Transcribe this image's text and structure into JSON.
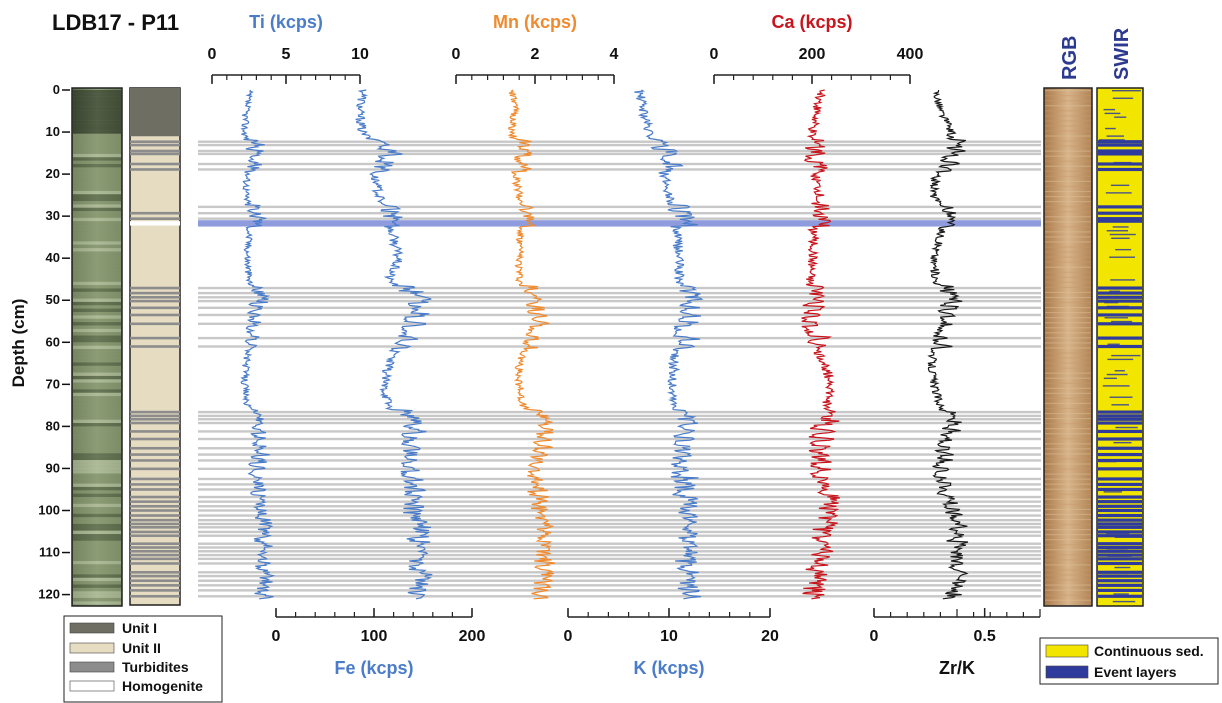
{
  "core_label": "LDB17 - P11",
  "depth_axis": {
    "label": "Depth (cm)",
    "min": 0,
    "max": 122,
    "ticks": [
      0,
      10,
      20,
      30,
      40,
      50,
      60,
      70,
      80,
      90,
      100,
      110,
      120
    ]
  },
  "colors": {
    "blue": "#4a7cc9",
    "orange": "#f08a2e",
    "red": "#c8141c",
    "black": "#1a1a1a",
    "grey_band": "#c8c8c8",
    "highlight": "#8e9bdc",
    "unit1": "#6e6e62",
    "unit2": "#e6dcc2",
    "turbidite": "#8c8c8c",
    "continuous": "#f2e600",
    "event": "#2e3b9c"
  },
  "units_column": {
    "unit1": [
      0,
      11
    ],
    "turbidites": [
      12.3,
      13.1,
      14.5,
      15.2,
      17.6,
      18.9,
      29.3,
      30.6,
      47.1,
      48.3,
      49.3,
      50.2,
      51.8,
      53.5,
      55.6,
      59.0,
      61.0,
      76.6,
      77.5,
      78.3,
      79.2,
      81.2,
      83.0,
      85.2,
      86.7,
      88.1,
      90.1,
      92.5,
      93.8,
      95.0,
      96.8,
      97.9,
      99.0,
      100.0,
      101.2,
      102.3,
      103.2,
      104.0,
      105.1,
      106.0,
      107.9,
      108.8,
      109.7,
      110.6,
      111.5,
      112.6,
      114.7,
      115.6,
      116.7,
      117.8,
      119.0,
      120.4
    ],
    "homogenite": [
      31.2,
      32.0
    ]
  },
  "event_bands": [
    12.3,
    13.1,
    14.5,
    15.2,
    17.6,
    18.9,
    27.8,
    29.3,
    30.6,
    47.1,
    48.3,
    49.3,
    50.2,
    51.8,
    53.5,
    55.6,
    59.0,
    61.0,
    76.6,
    77.5,
    78.3,
    79.2,
    81.2,
    83.0,
    85.2,
    86.7,
    88.1,
    90.1,
    92.5,
    93.8,
    95.0,
    96.8,
    97.9,
    99.0,
    100.0,
    101.2,
    102.3,
    103.2,
    104.0,
    105.1,
    106.0,
    107.9,
    108.8,
    109.7,
    110.6,
    111.5,
    112.6,
    114.7,
    115.6,
    116.7,
    117.8,
    119.0,
    120.4
  ],
  "homogenite_band": [
    31.2,
    32.0
  ],
  "chart_data": {
    "type": "line",
    "orientation": "depth-profile",
    "y_label": "Depth (cm)",
    "series": [
      {
        "name": "Ti (kcps)",
        "axis": "top",
        "xlim": [
          0,
          10
        ],
        "ticks": [
          0,
          5,
          10
        ],
        "color": "blue",
        "profile": [
          [
            0,
            2.5
          ],
          [
            5,
            2.3
          ],
          [
            10,
            2.2
          ],
          [
            15,
            2.6
          ],
          [
            20,
            2.4
          ],
          [
            25,
            2.3
          ],
          [
            30,
            2.6
          ],
          [
            35,
            2.5
          ],
          [
            40,
            2.4
          ],
          [
            45,
            2.5
          ],
          [
            50,
            2.8
          ],
          [
            55,
            2.6
          ],
          [
            60,
            2.5
          ],
          [
            65,
            2.3
          ],
          [
            70,
            2.2
          ],
          [
            75,
            2.4
          ],
          [
            80,
            2.8
          ],
          [
            85,
            2.9
          ],
          [
            90,
            2.7
          ],
          [
            95,
            2.8
          ],
          [
            100,
            2.9
          ],
          [
            105,
            3.1
          ],
          [
            110,
            3.0
          ],
          [
            115,
            3.2
          ],
          [
            120,
            3.1
          ]
        ]
      },
      {
        "name": "Fe (kcps)",
        "axis": "bottom",
        "xlim": [
          0,
          200
        ],
        "ticks": [
          0,
          100,
          200
        ],
        "color": "blue",
        "profile": [
          [
            0,
            90
          ],
          [
            5,
            85
          ],
          [
            10,
            88
          ],
          [
            15,
            110
          ],
          [
            20,
            100
          ],
          [
            25,
            105
          ],
          [
            30,
            110
          ],
          [
            35,
            120
          ],
          [
            40,
            125
          ],
          [
            45,
            115
          ],
          [
            50,
            140
          ],
          [
            55,
            135
          ],
          [
            60,
            125
          ],
          [
            65,
            115
          ],
          [
            70,
            110
          ],
          [
            75,
            115
          ],
          [
            80,
            135
          ],
          [
            85,
            130
          ],
          [
            90,
            128
          ],
          [
            95,
            135
          ],
          [
            100,
            130
          ],
          [
            105,
            140
          ],
          [
            110,
            135
          ],
          [
            115,
            140
          ],
          [
            120,
            138
          ]
        ]
      },
      {
        "name": "Mn (kcps)",
        "axis": "top",
        "xlim": [
          0,
          4
        ],
        "ticks": [
          0,
          2,
          4
        ],
        "color": "orange",
        "profile": [
          [
            0,
            1.4
          ],
          [
            5,
            1.5
          ],
          [
            10,
            1.4
          ],
          [
            15,
            1.6
          ],
          [
            20,
            1.5
          ],
          [
            25,
            1.6
          ],
          [
            30,
            1.7
          ],
          [
            35,
            1.6
          ],
          [
            40,
            1.6
          ],
          [
            45,
            1.6
          ],
          [
            50,
            1.8
          ],
          [
            55,
            2.0
          ],
          [
            60,
            1.8
          ],
          [
            65,
            1.6
          ],
          [
            70,
            1.6
          ],
          [
            75,
            1.7
          ],
          [
            80,
            2.2
          ],
          [
            85,
            2.0
          ],
          [
            90,
            1.9
          ],
          [
            95,
            1.9
          ],
          [
            100,
            2.0
          ],
          [
            105,
            2.1
          ],
          [
            110,
            2.0
          ],
          [
            115,
            2.1
          ],
          [
            120,
            2.0
          ]
        ]
      },
      {
        "name": "K (kcps)",
        "axis": "bottom",
        "xlim": [
          0,
          20
        ],
        "ticks": [
          0,
          10,
          20
        ],
        "color": "blue",
        "profile": [
          [
            0,
            7
          ],
          [
            5,
            7.5
          ],
          [
            10,
            8
          ],
          [
            15,
            9
          ],
          [
            20,
            9.5
          ],
          [
            25,
            10
          ],
          [
            30,
            10.5
          ],
          [
            35,
            10.8
          ],
          [
            40,
            11
          ],
          [
            45,
            11
          ],
          [
            50,
            11.5
          ],
          [
            55,
            11
          ],
          [
            60,
            10.8
          ],
          [
            65,
            10.5
          ],
          [
            70,
            10.3
          ],
          [
            75,
            10.5
          ],
          [
            80,
            11
          ],
          [
            85,
            10.8
          ],
          [
            90,
            10.6
          ],
          [
            95,
            10.8
          ],
          [
            100,
            11
          ],
          [
            105,
            11.2
          ],
          [
            110,
            11
          ],
          [
            115,
            11.2
          ],
          [
            120,
            11.3
          ]
        ]
      },
      {
        "name": "Ca (kcps)",
        "axis": "top",
        "xlim": [
          0,
          400
        ],
        "ticks": [
          0,
          200,
          400
        ],
        "color": "red",
        "profile": [
          [
            0,
            220
          ],
          [
            5,
            210
          ],
          [
            10,
            200
          ],
          [
            15,
            190
          ],
          [
            20,
            205
          ],
          [
            25,
            215
          ],
          [
            30,
            200
          ],
          [
            35,
            205
          ],
          [
            40,
            200
          ],
          [
            45,
            195
          ],
          [
            50,
            190
          ],
          [
            55,
            185
          ],
          [
            60,
            200
          ],
          [
            65,
            225
          ],
          [
            70,
            240
          ],
          [
            75,
            230
          ],
          [
            80,
            205
          ],
          [
            85,
            200
          ],
          [
            90,
            205
          ],
          [
            95,
            215
          ],
          [
            100,
            220
          ],
          [
            105,
            210
          ],
          [
            110,
            200
          ],
          [
            115,
            195
          ],
          [
            120,
            190
          ]
        ]
      },
      {
        "name": "Zr/K",
        "axis": "bottom",
        "xlim": [
          0,
          0.75
        ],
        "ticks": [
          0,
          0.5
        ],
        "color": "black",
        "profile": [
          [
            0,
            0.28
          ],
          [
            5,
            0.3
          ],
          [
            10,
            0.35
          ],
          [
            15,
            0.33
          ],
          [
            20,
            0.28
          ],
          [
            25,
            0.27
          ],
          [
            30,
            0.32
          ],
          [
            35,
            0.3
          ],
          [
            40,
            0.27
          ],
          [
            45,
            0.28
          ],
          [
            50,
            0.32
          ],
          [
            55,
            0.3
          ],
          [
            60,
            0.28
          ],
          [
            65,
            0.26
          ],
          [
            70,
            0.27
          ],
          [
            75,
            0.3
          ],
          [
            80,
            0.32
          ],
          [
            85,
            0.3
          ],
          [
            90,
            0.28
          ],
          [
            95,
            0.3
          ],
          [
            100,
            0.32
          ],
          [
            105,
            0.35
          ],
          [
            110,
            0.33
          ],
          [
            115,
            0.36
          ],
          [
            120,
            0.32
          ]
        ]
      }
    ]
  },
  "images": {
    "rgb_label": "RGB",
    "swir_label": "SWIR"
  },
  "legend_left": [
    {
      "label": "Unit I",
      "color": "unit1"
    },
    {
      "label": "Unit II",
      "color": "unit2"
    },
    {
      "label": "Turbidites",
      "color": "turbidite"
    },
    {
      "label": "Homogenite",
      "color": "white"
    }
  ],
  "legend_right": [
    {
      "label": "Continuous sed.",
      "color": "continuous"
    },
    {
      "label": "Event layers",
      "color": "event"
    }
  ]
}
